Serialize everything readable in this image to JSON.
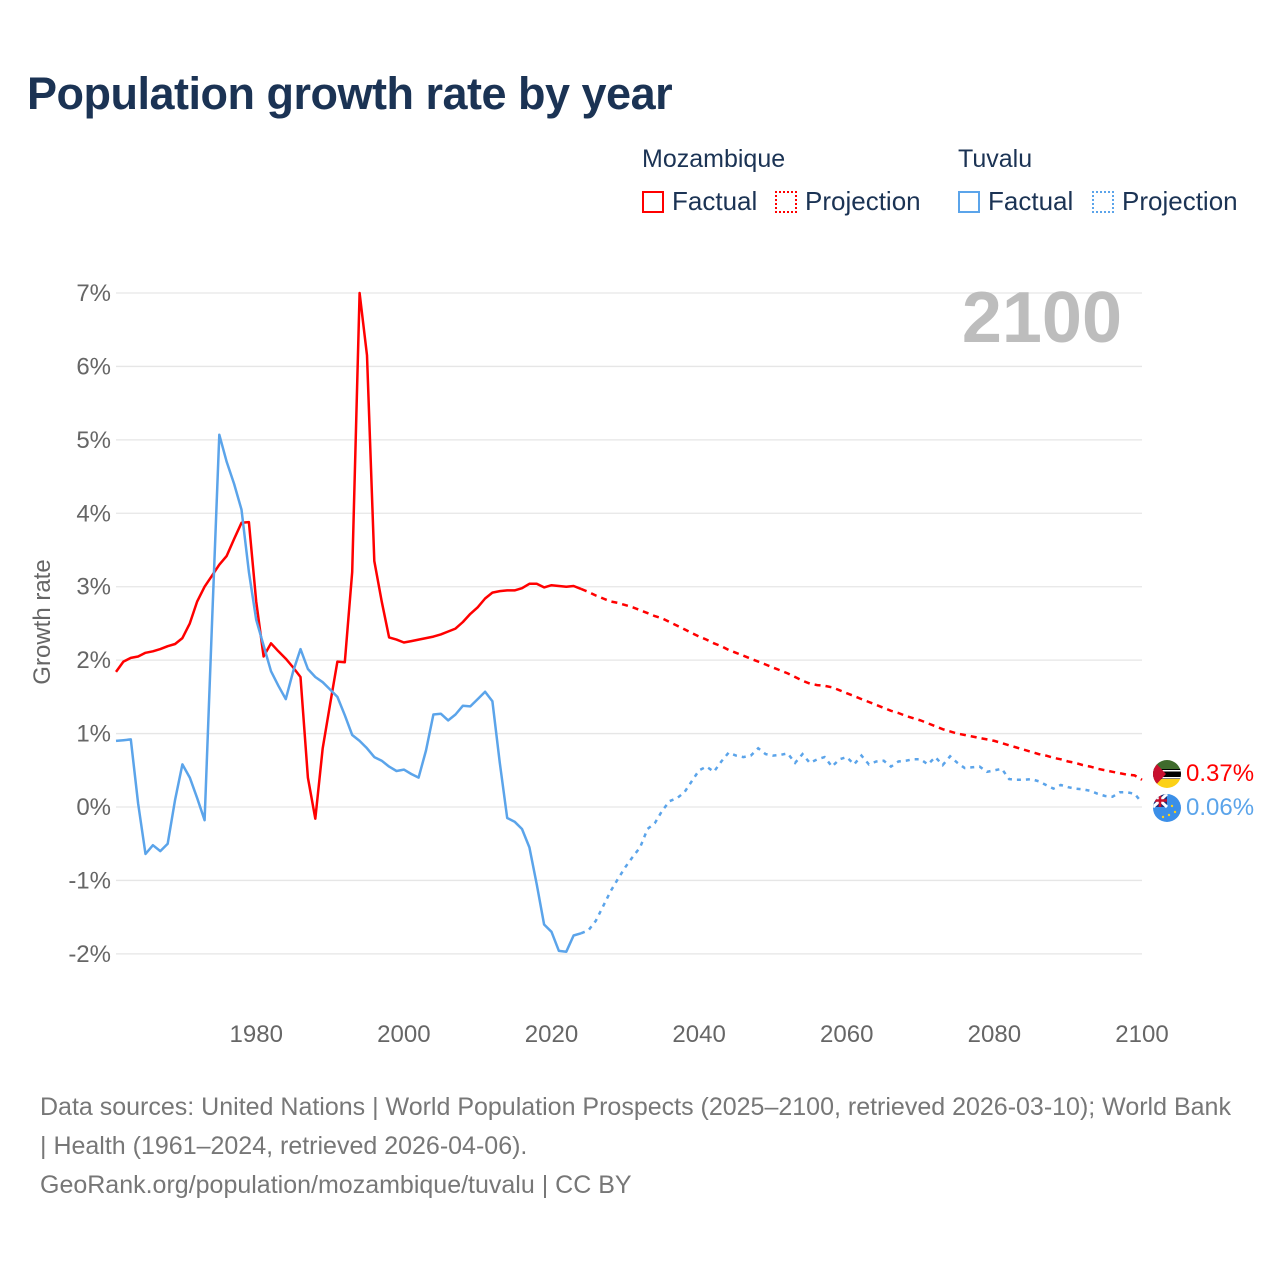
{
  "title": "Population growth rate by year",
  "legend": {
    "groups": [
      {
        "name": "Mozambique",
        "color": "#ff0000",
        "factual": "Factual",
        "projection": "Projection"
      },
      {
        "name": "Tuvalu",
        "color": "#5ba4ea",
        "factual": "Factual",
        "projection": "Projection"
      }
    ]
  },
  "current_year_label": "2100",
  "end_labels": {
    "mozambique": "0.37%",
    "tuvalu": "0.06%"
  },
  "source": {
    "line1": "Data sources: United Nations | World Population Prospects (2025–2100, retrieved 2026-03-10); World Bank | Health (1961–2024, retrieved 2026-04-06).",
    "line2": "GeoRank.org/population/mozambique/tuvalu | CC BY"
  },
  "chart_data": {
    "type": "line",
    "title": "Population growth rate by year",
    "ylabel": "Growth rate",
    "xlabel": "",
    "xlim": [
      1961,
      2100
    ],
    "ylim": [
      -2,
      7
    ],
    "x_ticks": [
      "1980",
      "2000",
      "2020",
      "2040",
      "2060",
      "2080",
      "2100"
    ],
    "y_ticks": [
      "-2%",
      "-1%",
      "0%",
      "1%",
      "2%",
      "3%",
      "4%",
      "5%",
      "6%",
      "7%"
    ],
    "grid": true,
    "factual_end_year": 2024,
    "series": [
      {
        "name": "Mozambique",
        "start_year": 1961,
        "values": [
          1.84,
          1.98,
          2.03,
          2.05,
          2.1,
          2.12,
          2.15,
          2.19,
          2.22,
          2.3,
          2.5,
          2.8,
          3.0,
          3.15,
          3.3,
          3.42,
          3.65,
          3.87,
          3.88,
          2.8,
          2.05,
          2.23,
          2.12,
          2.02,
          1.9,
          1.77,
          0.4,
          -0.16,
          0.8,
          1.4,
          1.98,
          1.97,
          3.2,
          7.0,
          6.15,
          3.35,
          2.8,
          2.31,
          2.28,
          2.24,
          2.26,
          2.28,
          2.3,
          2.32,
          2.35,
          2.39,
          2.43,
          2.52,
          2.63,
          2.72,
          2.84,
          2.92,
          2.94,
          2.95,
          2.95,
          2.98,
          3.04,
          3.04,
          2.99,
          3.02,
          3.01,
          3.0,
          3.01,
          2.97,
          2.93,
          2.88,
          2.84,
          2.8,
          2.78,
          2.75,
          2.72,
          2.68,
          2.64,
          2.6,
          2.57,
          2.52,
          2.47,
          2.42,
          2.37,
          2.32,
          2.28,
          2.23,
          2.19,
          2.14,
          2.1,
          2.06,
          2.02,
          1.98,
          1.94,
          1.9,
          1.86,
          1.82,
          1.77,
          1.72,
          1.68,
          1.66,
          1.65,
          1.63,
          1.59,
          1.55,
          1.51,
          1.47,
          1.43,
          1.39,
          1.35,
          1.31,
          1.28,
          1.24,
          1.21,
          1.18,
          1.14,
          1.1,
          1.06,
          1.03,
          1.0,
          0.98,
          0.96,
          0.94,
          0.92,
          0.9,
          0.87,
          0.84,
          0.81,
          0.78,
          0.75,
          0.72,
          0.7,
          0.67,
          0.65,
          0.62,
          0.6,
          0.57,
          0.55,
          0.52,
          0.5,
          0.48,
          0.46,
          0.44,
          0.43,
          0.37
        ]
      },
      {
        "name": "Tuvalu",
        "start_year": 1961,
        "values": [
          0.9,
          0.91,
          0.92,
          0.05,
          -0.64,
          -0.52,
          -0.6,
          -0.5,
          0.1,
          0.58,
          0.4,
          0.12,
          -0.18,
          2.5,
          5.07,
          4.7,
          4.4,
          4.05,
          3.2,
          2.55,
          2.2,
          1.85,
          1.65,
          1.47,
          1.85,
          2.15,
          1.88,
          1.77,
          1.7,
          1.6,
          1.5,
          1.25,
          0.98,
          0.9,
          0.8,
          0.68,
          0.63,
          0.55,
          0.49,
          0.51,
          0.45,
          0.4,
          0.77,
          1.26,
          1.27,
          1.18,
          1.26,
          1.38,
          1.37,
          1.47,
          1.57,
          1.44,
          0.6,
          -0.15,
          -0.2,
          -0.3,
          -0.55,
          -1.05,
          -1.6,
          -1.7,
          -1.96,
          -1.97,
          -1.75,
          -1.72,
          -1.68,
          -1.55,
          -1.35,
          -1.15,
          -0.98,
          -0.82,
          -0.68,
          -0.55,
          -0.3,
          -0.22,
          -0.05,
          0.08,
          0.12,
          0.2,
          0.35,
          0.5,
          0.55,
          0.48,
          0.62,
          0.74,
          0.7,
          0.68,
          0.7,
          0.8,
          0.72,
          0.7,
          0.71,
          0.73,
          0.6,
          0.72,
          0.6,
          0.65,
          0.68,
          0.55,
          0.65,
          0.68,
          0.58,
          0.7,
          0.58,
          0.62,
          0.63,
          0.55,
          0.62,
          0.63,
          0.65,
          0.65,
          0.58,
          0.68,
          0.57,
          0.69,
          0.6,
          0.53,
          0.54,
          0.55,
          0.48,
          0.5,
          0.52,
          0.38,
          0.37,
          0.37,
          0.38,
          0.35,
          0.3,
          0.25,
          0.3,
          0.27,
          0.25,
          0.24,
          0.22,
          0.18,
          0.15,
          0.14,
          0.2,
          0.2,
          0.18,
          0.06
        ]
      }
    ]
  }
}
